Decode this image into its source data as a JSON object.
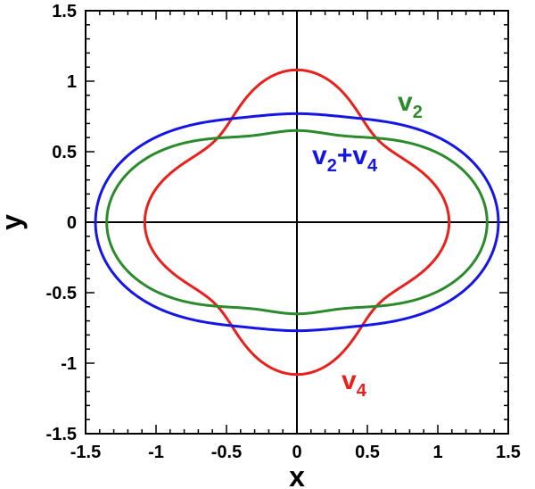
{
  "chart_data": {
    "type": "line",
    "xlabel": "x",
    "ylabel": "y",
    "xlim": [
      -1.5,
      1.5
    ],
    "ylim": [
      -1.5,
      1.5
    ],
    "xticks": [
      "-1.5",
      "-1",
      "-0.5",
      "0",
      "0.5",
      "1",
      "1.5"
    ],
    "yticks": [
      "-1.5",
      "-1",
      "-0.5",
      "0",
      "0.5",
      "1",
      "1.5"
    ],
    "grid": false,
    "legend": "none",
    "series": [
      {
        "name": "v4",
        "label_main": "v",
        "label_sub": "4",
        "color": "#e8211c",
        "radius_at_angle_deg": {
          "0": 1.08,
          "45": 0.82,
          "90": 1.08
        },
        "points": [
          [
            1.08,
            0.0
          ],
          [
            0.93,
            0.4
          ],
          [
            0.58,
            0.58
          ],
          [
            0.4,
            0.93
          ],
          [
            0.0,
            1.08
          ],
          [
            -0.4,
            0.93
          ],
          [
            -0.58,
            0.58
          ],
          [
            -0.93,
            0.4
          ],
          [
            -1.08,
            0.0
          ],
          [
            -0.93,
            -0.4
          ],
          [
            -0.58,
            -0.58
          ],
          [
            -0.4,
            -0.93
          ],
          [
            0.0,
            -1.08
          ],
          [
            0.4,
            -0.93
          ],
          [
            0.58,
            -0.58
          ],
          [
            0.93,
            -0.4
          ]
        ]
      },
      {
        "name": "v2",
        "label_main": "v",
        "label_sub": "2",
        "color": "#2b8a2b",
        "radius_at_angle_deg": {
          "0": 1.35,
          "90": 0.67
        },
        "points": [
          [
            1.35,
            0.0
          ],
          [
            1.2,
            0.4
          ],
          [
            0.5,
            0.73
          ],
          [
            0.0,
            0.67
          ],
          [
            -0.5,
            0.73
          ],
          [
            -1.2,
            0.4
          ],
          [
            -1.35,
            0.0
          ],
          [
            -1.2,
            -0.4
          ],
          [
            -0.5,
            -0.73
          ],
          [
            0.0,
            -0.67
          ],
          [
            0.5,
            -0.73
          ],
          [
            1.2,
            -0.4
          ]
        ]
      },
      {
        "name": "v2+v4",
        "label_main": "v",
        "label_sub": "2",
        "label_mid": "+v",
        "label_sub2": "4",
        "color": "#1515e6",
        "radius_at_angle_deg": {
          "0": 1.43,
          "90": 0.74
        },
        "points": [
          [
            1.43,
            0.0
          ],
          [
            1.3,
            0.4
          ],
          [
            0.6,
            0.68
          ],
          [
            0.0,
            0.74
          ],
          [
            -0.6,
            0.68
          ],
          [
            -1.3,
            0.4
          ],
          [
            -1.43,
            0.0
          ],
          [
            -1.3,
            -0.4
          ],
          [
            -0.6,
            -0.68
          ],
          [
            0.0,
            -0.74
          ],
          [
            0.6,
            -0.68
          ],
          [
            1.3,
            -0.4
          ]
        ]
      }
    ]
  }
}
